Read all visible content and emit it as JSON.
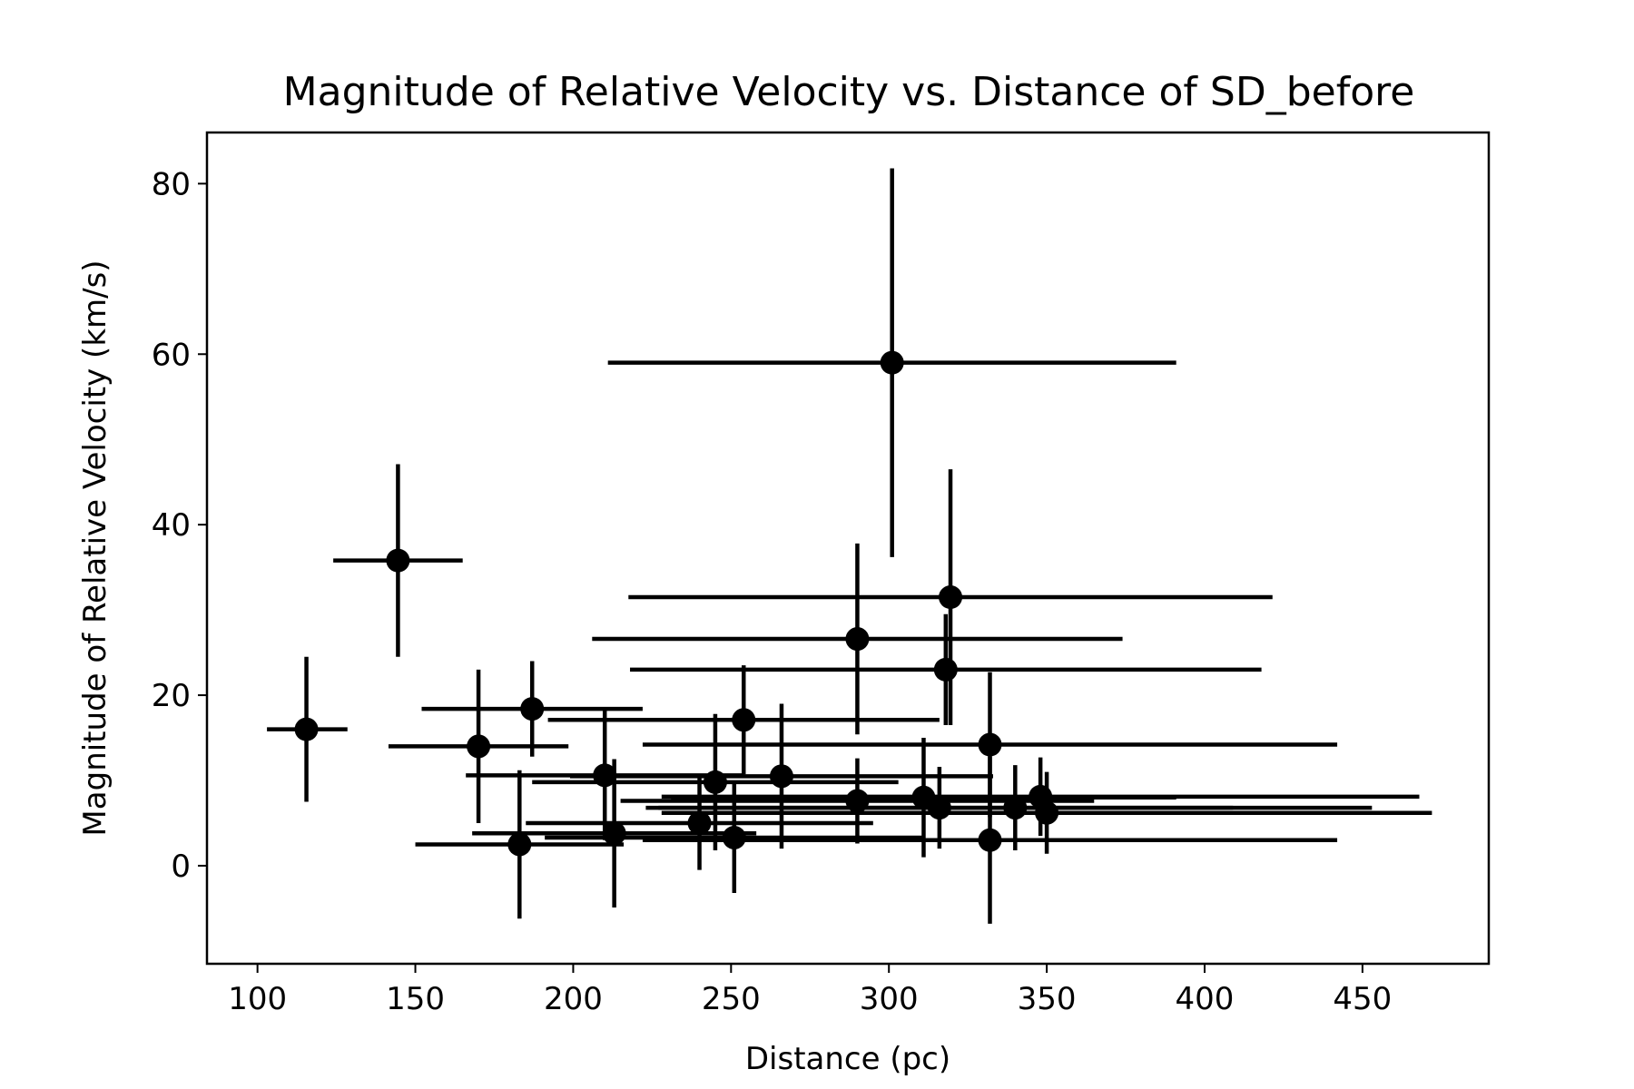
{
  "chart_data": {
    "type": "scatter",
    "title": "Magnitude of Relative Velocity vs. Distance of SD_before",
    "xlabel": "Distance (pc)",
    "ylabel": "Magnitude of Relative Velocity (km/s)",
    "xlim": [
      84,
      490
    ],
    "ylim": [
      -11.5,
      86
    ],
    "xticks": [
      100,
      150,
      200,
      250,
      300,
      350,
      400,
      450
    ],
    "yticks": [
      0,
      20,
      40,
      60,
      80
    ],
    "grid": false,
    "legend": "none",
    "color": "#000000",
    "points": [
      {
        "x": 115.5,
        "y": 16.0,
        "xerr": [
          12.5,
          13.0
        ],
        "yerr": [
          8.5,
          8.5
        ]
      },
      {
        "x": 144.5,
        "y": 35.8,
        "xerr": [
          20.5,
          20.5
        ],
        "yerr": [
          11.3,
          11.3
        ]
      },
      {
        "x": 170.0,
        "y": 14.0,
        "xerr": [
          28.5,
          28.5
        ],
        "yerr": [
          9.0,
          9.0
        ]
      },
      {
        "x": 183.0,
        "y": 2.5,
        "xerr": [
          33.0,
          33.0
        ],
        "yerr": [
          8.7,
          8.7
        ]
      },
      {
        "x": 187.0,
        "y": 18.4,
        "xerr": [
          35.0,
          35.0
        ],
        "yerr": [
          5.6,
          5.6
        ]
      },
      {
        "x": 210.0,
        "y": 10.6,
        "xerr": [
          44.0,
          44.0
        ],
        "yerr": [
          7.6,
          7.6
        ]
      },
      {
        "x": 213.0,
        "y": 3.8,
        "xerr": [
          45.0,
          45.0
        ],
        "yerr": [
          8.7,
          8.7
        ]
      },
      {
        "x": 240.0,
        "y": 5.0,
        "xerr": [
          55.0,
          55.0
        ],
        "yerr": [
          5.5,
          5.5
        ]
      },
      {
        "x": 245.0,
        "y": 9.8,
        "xerr": [
          58.0,
          58.0
        ],
        "yerr": [
          8.0,
          8.0
        ]
      },
      {
        "x": 251.0,
        "y": 3.3,
        "xerr": [
          60.0,
          60.0
        ],
        "yerr": [
          6.5,
          6.5
        ]
      },
      {
        "x": 254.0,
        "y": 17.1,
        "xerr": [
          62.0,
          62.0
        ],
        "yerr": [
          6.4,
          6.4
        ]
      },
      {
        "x": 266.0,
        "y": 10.5,
        "xerr": [
          67.0,
          67.0
        ],
        "yerr": [
          8.5,
          8.5
        ]
      },
      {
        "x": 290.0,
        "y": 7.6,
        "xerr": [
          75.0,
          75.0
        ],
        "yerr": [
          5.0,
          5.0
        ]
      },
      {
        "x": 290.0,
        "y": 26.6,
        "xerr": [
          84.0,
          84.0
        ],
        "yerr": [
          11.2,
          11.2
        ]
      },
      {
        "x": 301.0,
        "y": 59.0,
        "xerr": [
          90.0,
          90.0
        ],
        "yerr": [
          22.8,
          22.8
        ]
      },
      {
        "x": 311.0,
        "y": 8.0,
        "xerr": [
          80.0,
          80.0
        ],
        "yerr": [
          7.0,
          7.0
        ]
      },
      {
        "x": 316.0,
        "y": 6.8,
        "xerr": [
          93.0,
          93.0
        ],
        "yerr": [
          4.8,
          4.8
        ]
      },
      {
        "x": 318.0,
        "y": 23.0,
        "xerr": [
          100.0,
          100.0
        ],
        "yerr": [
          6.5,
          6.5
        ]
      },
      {
        "x": 319.5,
        "y": 31.5,
        "xerr": [
          102.0,
          102.0
        ],
        "yerr": [
          15.0,
          15.0
        ]
      },
      {
        "x": 332.0,
        "y": 14.2,
        "xerr": [
          110.0,
          110.0
        ],
        "yerr": [
          8.5,
          8.5
        ]
      },
      {
        "x": 332.0,
        "y": 3.0,
        "xerr": [
          110.0,
          110.0
        ],
        "yerr": [
          9.8,
          9.8
        ]
      },
      {
        "x": 340.0,
        "y": 6.8,
        "xerr": [
          113.0,
          113.0
        ],
        "yerr": [
          5.0,
          5.0
        ]
      },
      {
        "x": 348.0,
        "y": 8.1,
        "xerr": [
          120.0,
          120.0
        ],
        "yerr": [
          4.6,
          4.6
        ]
      },
      {
        "x": 350.0,
        "y": 6.2,
        "xerr": [
          122.0,
          122.0
        ],
        "yerr": [
          4.8,
          4.8
        ]
      }
    ]
  }
}
